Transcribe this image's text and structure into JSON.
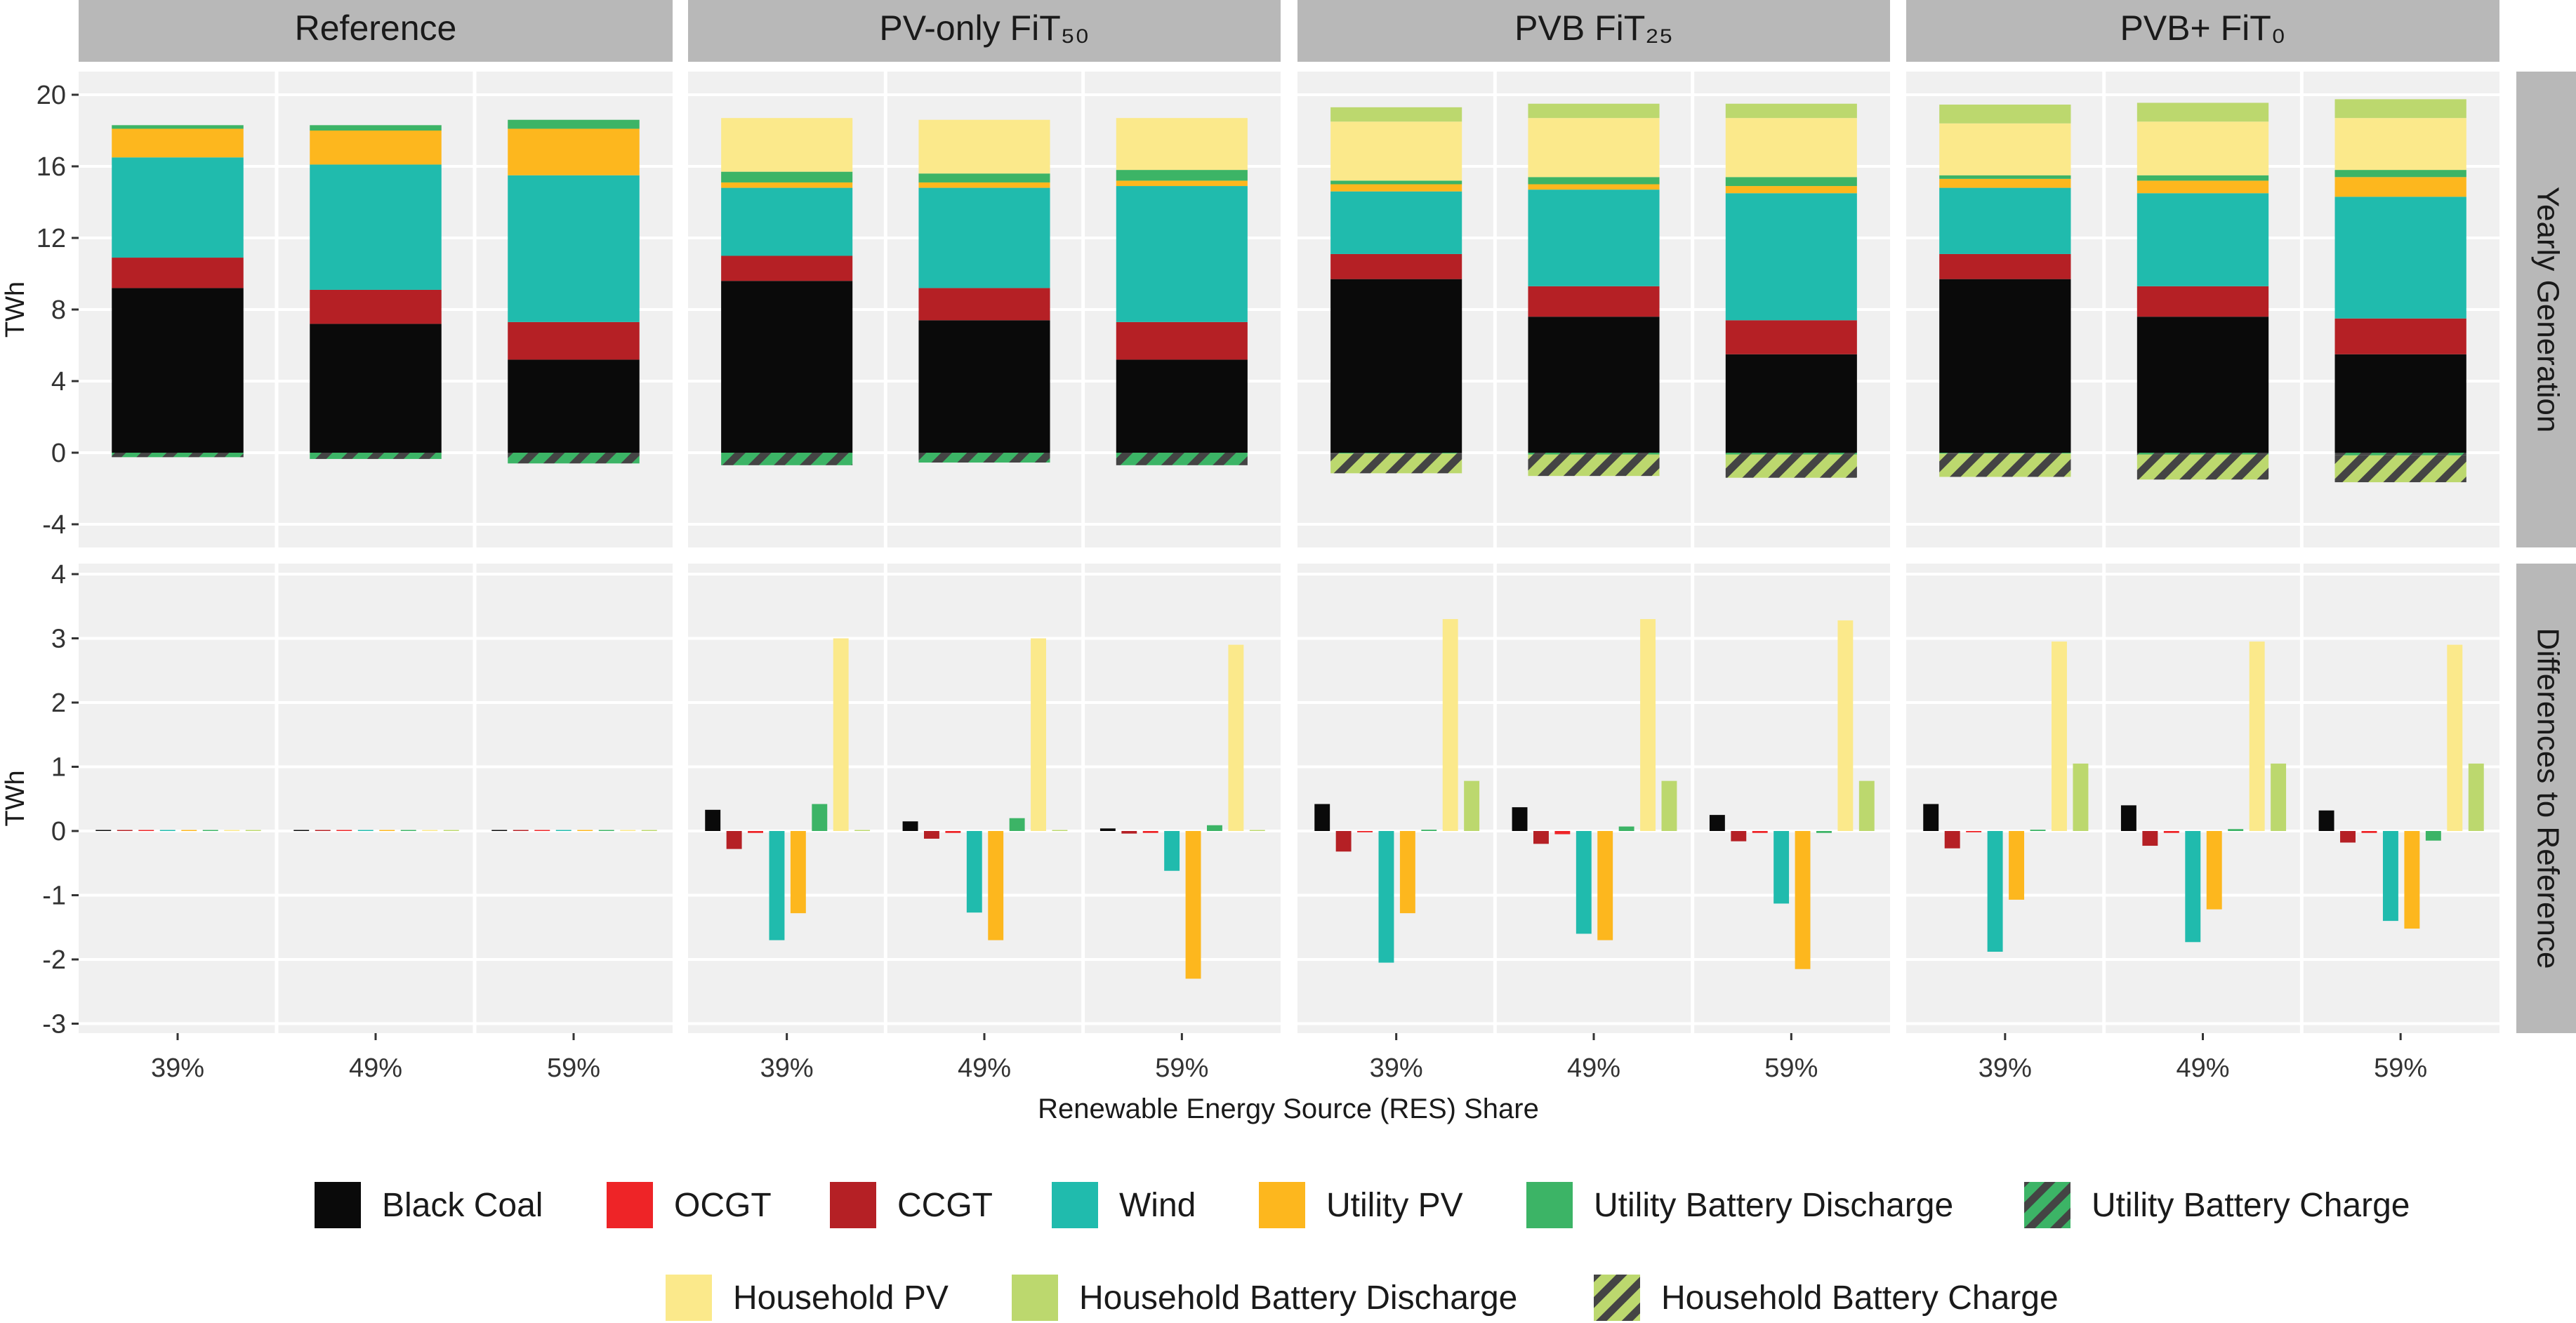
{
  "chart_data": {
    "type": "bar",
    "layout": "faceted stacked bar (top row) and grouped bar (bottom row)",
    "title": "",
    "xlabel": "Renewable Energy Source (RES) Share",
    "categories": [
      "39%",
      "49%",
      "59%"
    ],
    "facet_columns": [
      "Reference",
      "PV-only FiT₅₀",
      "PVB FiT₂₅",
      "PVB+ FiT₀"
    ],
    "facet_rows": [
      {
        "label": "Yearly Generation",
        "ylabel": "TWh",
        "ylim": [
          -5,
          21
        ],
        "ticks": [
          20,
          16,
          12,
          8,
          4,
          0,
          -4
        ]
      },
      {
        "label": "Differences to Reference",
        "ylabel": "TWh",
        "ylim": [
          -3.2,
          4.3
        ],
        "ticks": [
          4,
          3,
          2,
          1,
          0,
          -1,
          -2,
          -3
        ]
      }
    ],
    "series": [
      {
        "key": "coal",
        "name": "Black Coal",
        "color": "#0a0a0a",
        "pattern": "solid"
      },
      {
        "key": "ocgt",
        "name": "OCGT",
        "color": "#ee2427",
        "pattern": "solid"
      },
      {
        "key": "ccgt",
        "name": "CCGT",
        "color": "#b52025",
        "pattern": "solid"
      },
      {
        "key": "wind",
        "name": "Wind",
        "color": "#20bbad",
        "pattern": "solid"
      },
      {
        "key": "upv",
        "name": "Utility PV",
        "color": "#fdb71e",
        "pattern": "solid"
      },
      {
        "key": "ubd",
        "name": "Utility Battery Discharge",
        "color": "#3cb466",
        "pattern": "solid"
      },
      {
        "key": "ubc",
        "name": "Utility Battery Charge",
        "color": "#3cb466",
        "pattern": "hatched"
      },
      {
        "key": "hpv",
        "name": "Household PV",
        "color": "#fbe98b",
        "pattern": "solid"
      },
      {
        "key": "hbd",
        "name": "Household Battery Discharge",
        "color": "#bcd86e",
        "pattern": "solid"
      },
      {
        "key": "hbc",
        "name": "Household Battery Charge",
        "color": "#bcd86e",
        "pattern": "hatched"
      }
    ],
    "stack_order": [
      "coal",
      "ocgt",
      "ccgt",
      "wind",
      "upv",
      "ubd",
      "hpv",
      "hbd"
    ],
    "generation": {
      "Reference": {
        "39%": {
          "coal": 9.2,
          "ocgt": 0.0,
          "ccgt": 1.7,
          "wind": 5.6,
          "upv": 1.6,
          "ubd": 0.2,
          "hpv": 0.0,
          "hbd": 0.0,
          "ubc": -0.25,
          "hbc": 0.0
        },
        "49%": {
          "coal": 7.2,
          "ocgt": 0.0,
          "ccgt": 1.9,
          "wind": 7.0,
          "upv": 1.9,
          "ubd": 0.3,
          "hpv": 0.0,
          "hbd": 0.0,
          "ubc": -0.35,
          "hbc": 0.0
        },
        "59%": {
          "coal": 5.2,
          "ocgt": 0.0,
          "ccgt": 2.1,
          "wind": 8.2,
          "upv": 2.6,
          "ubd": 0.5,
          "hpv": 0.0,
          "hbd": 0.0,
          "ubc": -0.6,
          "hbc": 0.0
        }
      },
      "PV-only FiT₅₀": {
        "39%": {
          "coal": 9.6,
          "ocgt": 0.0,
          "ccgt": 1.4,
          "wind": 3.8,
          "upv": 0.3,
          "ubd": 0.6,
          "hpv": 3.0,
          "hbd": 0.0,
          "ubc": -0.7,
          "hbc": 0.0
        },
        "49%": {
          "coal": 7.4,
          "ocgt": 0.0,
          "ccgt": 1.8,
          "wind": 5.6,
          "upv": 0.3,
          "ubd": 0.5,
          "hpv": 3.0,
          "hbd": 0.0,
          "ubc": -0.55,
          "hbc": 0.0
        },
        "59%": {
          "coal": 5.2,
          "ocgt": 0.0,
          "ccgt": 2.1,
          "wind": 7.6,
          "upv": 0.3,
          "ubd": 0.6,
          "hpv": 2.9,
          "hbd": 0.0,
          "ubc": -0.7,
          "hbc": 0.0
        }
      },
      "PVB FiT₂₅": {
        "39%": {
          "coal": 9.7,
          "ocgt": 0.0,
          "ccgt": 1.4,
          "wind": 3.5,
          "upv": 0.4,
          "ubd": 0.2,
          "hpv": 3.3,
          "hbd": 0.8,
          "ubc": -0.05,
          "hbc": -1.1
        },
        "49%": {
          "coal": 7.6,
          "ocgt": 0.0,
          "ccgt": 1.7,
          "wind": 5.4,
          "upv": 0.3,
          "ubd": 0.4,
          "hpv": 3.3,
          "hbd": 0.8,
          "ubc": -0.1,
          "hbc": -1.2
        },
        "59%": {
          "coal": 5.5,
          "ocgt": 0.0,
          "ccgt": 1.9,
          "wind": 7.1,
          "upv": 0.4,
          "ubd": 0.5,
          "hpv": 3.3,
          "hbd": 0.8,
          "ubc": -0.1,
          "hbc": -1.3
        }
      },
      "PVB+ FiT₀": {
        "39%": {
          "coal": 9.7,
          "ocgt": 0.0,
          "ccgt": 1.4,
          "wind": 3.7,
          "upv": 0.5,
          "ubd": 0.2,
          "hpv": 2.9,
          "hbd": 1.05,
          "ubc": -0.05,
          "hbc": -1.3
        },
        "49%": {
          "coal": 7.6,
          "ocgt": 0.0,
          "ccgt": 1.7,
          "wind": 5.2,
          "upv": 0.7,
          "ubd": 0.3,
          "hpv": 3.0,
          "hbd": 1.05,
          "ubc": -0.1,
          "hbc": -1.4
        },
        "59%": {
          "coal": 5.5,
          "ocgt": 0.0,
          "ccgt": 2.0,
          "wind": 6.8,
          "upv": 1.1,
          "ubd": 0.4,
          "hpv": 2.9,
          "hbd": 1.05,
          "ubc": -0.15,
          "hbc": -1.5
        }
      }
    },
    "difference_order": [
      "coal",
      "ccgt",
      "ocgt",
      "wind",
      "upv",
      "ubd",
      "hpv",
      "hbd"
    ],
    "differences": {
      "Reference": {
        "39%": {
          "coal": 0,
          "ccgt": 0,
          "ocgt": 0,
          "wind": 0,
          "upv": 0,
          "ubd": 0,
          "hpv": 0,
          "hbd": 0
        },
        "49%": {
          "coal": 0,
          "ccgt": 0,
          "ocgt": 0,
          "wind": 0,
          "upv": 0,
          "ubd": 0,
          "hpv": 0,
          "hbd": 0
        },
        "59%": {
          "coal": 0,
          "ccgt": 0,
          "ocgt": 0,
          "wind": 0,
          "upv": 0,
          "ubd": 0,
          "hpv": 0,
          "hbd": 0
        }
      },
      "PV-only FiT₅₀": {
        "39%": {
          "coal": 0.33,
          "ccgt": -0.28,
          "ocgt": -0.03,
          "wind": -1.7,
          "upv": -1.28,
          "ubd": 0.42,
          "hpv": 3.0,
          "hbd": 0
        },
        "49%": {
          "coal": 0.15,
          "ccgt": -0.12,
          "ocgt": -0.03,
          "wind": -1.27,
          "upv": -1.7,
          "ubd": 0.2,
          "hpv": 3.0,
          "hbd": 0
        },
        "59%": {
          "coal": 0.04,
          "ccgt": -0.04,
          "ocgt": -0.03,
          "wind": -0.62,
          "upv": -2.3,
          "ubd": 0.09,
          "hpv": 2.9,
          "hbd": 0
        }
      },
      "PVB FiT₂₅": {
        "39%": {
          "coal": 0.42,
          "ccgt": -0.32,
          "ocgt": -0.02,
          "wind": -2.05,
          "upv": -1.28,
          "ubd": 0.02,
          "hpv": 3.3,
          "hbd": 0.78
        },
        "49%": {
          "coal": 0.37,
          "ccgt": -0.2,
          "ocgt": -0.05,
          "wind": -1.6,
          "upv": -1.7,
          "ubd": 0.07,
          "hpv": 3.3,
          "hbd": 0.78
        },
        "59%": {
          "coal": 0.25,
          "ccgt": -0.16,
          "ocgt": -0.03,
          "wind": -1.13,
          "upv": -2.15,
          "ubd": -0.03,
          "hpv": 3.28,
          "hbd": 0.78
        }
      },
      "PVB+ FiT₀": {
        "39%": {
          "coal": 0.42,
          "ccgt": -0.27,
          "ocgt": -0.02,
          "wind": -1.88,
          "upv": -1.07,
          "ubd": 0.02,
          "hpv": 2.95,
          "hbd": 1.05
        },
        "49%": {
          "coal": 0.4,
          "ccgt": -0.23,
          "ocgt": -0.03,
          "wind": -1.73,
          "upv": -1.22,
          "ubd": 0.03,
          "hpv": 2.95,
          "hbd": 1.05
        },
        "59%": {
          "coal": 0.32,
          "ccgt": -0.18,
          "ocgt": -0.03,
          "wind": -1.4,
          "upv": -1.52,
          "ubd": -0.15,
          "hpv": 2.9,
          "hbd": 1.05
        }
      }
    },
    "legend_placement": "bottom",
    "grid": true
  }
}
